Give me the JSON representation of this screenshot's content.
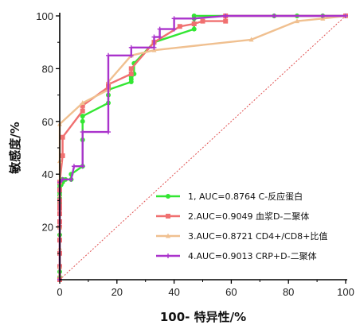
{
  "chart_data": {
    "type": "line",
    "xlabel": "100- 特异性/%",
    "ylabel": "敏感度/%",
    "xlim": [
      0,
      100
    ],
    "ylim": [
      0,
      100
    ],
    "xticks": [
      "0",
      "20",
      "40",
      "60",
      "80",
      "100"
    ],
    "yticks": [
      "20",
      "40",
      "60",
      "80",
      "100"
    ],
    "grid": false,
    "legend_position": "lower-right",
    "reference_line": {
      "color": "#e05050",
      "style": "dotted",
      "from": [
        0,
        0
      ],
      "to": [
        100,
        100
      ]
    },
    "series": [
      {
        "name": "1, AUC=0.8764 C-反应蛋白",
        "color": "#33e633",
        "marker": "circle",
        "x": [
          0,
          0,
          0,
          0,
          0,
          0,
          0,
          0,
          0,
          0,
          0,
          0,
          0,
          0,
          0,
          0,
          0.5,
          0.5,
          0.5,
          1,
          1,
          1,
          1,
          2,
          4,
          4,
          8,
          8,
          8,
          8,
          17,
          17,
          17,
          25,
          25,
          25,
          26,
          26,
          33,
          47,
          47,
          47,
          47,
          58,
          75,
          83,
          92,
          100
        ],
        "y": [
          1,
          3,
          10,
          15,
          17,
          20,
          27,
          28,
          29,
          30,
          31,
          32,
          33,
          34,
          35,
          36,
          36,
          37,
          37,
          37,
          37,
          38,
          38,
          38,
          38,
          40,
          43,
          53,
          60,
          62,
          67,
          70,
          72,
          75,
          76,
          77,
          78,
          82,
          90,
          95,
          97,
          99,
          100,
          100,
          100,
          100,
          100,
          100
        ]
      },
      {
        "name": "2.AUC=0.9049  血浆D-二聚体",
        "color": "#f07070",
        "marker": "square",
        "x": [
          0,
          0,
          0,
          0,
          0,
          0,
          0,
          0,
          0,
          0,
          0,
          0,
          1,
          1,
          8,
          8,
          17,
          17,
          25,
          25,
          33,
          42,
          47,
          50,
          58,
          58,
          100
        ],
        "y": [
          0,
          5,
          10,
          15,
          20,
          22,
          25,
          27,
          28,
          30,
          34,
          37,
          47,
          54,
          64,
          66,
          73,
          74,
          78,
          80,
          90,
          96,
          97,
          98,
          98,
          100,
          100
        ]
      },
      {
        "name": "3.AUC=0.8721 CD4+/CD8+比值",
        "color": "#f0c090",
        "marker": "triangle",
        "x": [
          0,
          0,
          0,
          0,
          0,
          0,
          0,
          8,
          17,
          17,
          25,
          33,
          67,
          83,
          92,
          100
        ],
        "y": [
          2,
          5,
          12,
          20,
          32,
          45,
          59,
          67,
          72,
          75,
          85,
          87,
          91,
          98,
          99,
          100
        ]
      },
      {
        "name": "4.AUC=0.9013 CRP+D-二聚体",
        "color": "#aa33cc",
        "marker": "cross",
        "x": [
          0,
          0,
          1,
          4,
          5,
          8,
          8,
          17,
          17,
          25,
          25,
          33,
          33,
          35,
          35,
          40,
          40,
          47,
          58,
          75,
          92,
          100
        ],
        "y": [
          0,
          37,
          38,
          38,
          43,
          43,
          56,
          56,
          85,
          85,
          88,
          88,
          92,
          92,
          95,
          95,
          99,
          99,
          100,
          100,
          100,
          100
        ]
      }
    ]
  }
}
